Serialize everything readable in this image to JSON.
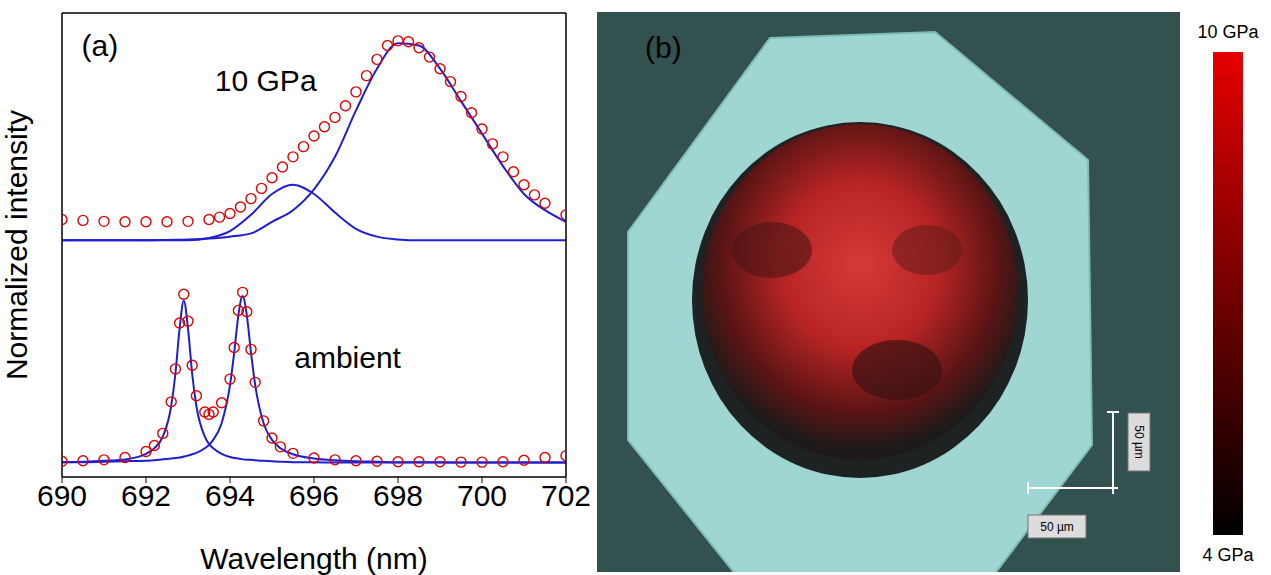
{
  "chart_data": {
    "type": "line",
    "x_label": "Wavelength (nm)",
    "y_label": "Normalized intensity",
    "xlim": [
      690,
      702
    ],
    "xticks": [
      690,
      692,
      694,
      696,
      698,
      700,
      702
    ],
    "ylim": [
      0,
      1
    ],
    "tick_labels": "x",
    "grid": false,
    "annotations": [
      {
        "text": "(a)",
        "x": 690.9,
        "y": 0.93
      },
      {
        "text": "10 GPa",
        "x": 694.85,
        "y": 0.854
      },
      {
        "text": "ambient",
        "x": 696.8,
        "y": 0.258
      }
    ],
    "series": [
      {
        "type": "line",
        "color": "#1f1fd0",
        "line_style": "solid",
        "x": [
          690,
          690.5,
          691,
          691.5,
          692,
          692.2,
          692.4,
          692.6,
          692.7,
          692.8,
          692.9,
          693.0,
          693.1,
          693.2,
          693.4,
          693.5,
          693.6,
          693.8,
          694.0,
          694.1,
          694.2,
          694.3,
          694.4,
          694.5,
          694.6,
          694.8,
          695.0,
          695.2,
          695.5,
          696,
          696.5,
          697,
          697.5,
          698,
          698.5,
          699,
          699.5,
          700,
          700.5,
          701,
          701.5,
          702
        ],
        "values": [
          0.032,
          0.033,
          0.035,
          0.038,
          0.05,
          0.062,
          0.087,
          0.153,
          0.222,
          0.32,
          0.38,
          0.32,
          0.222,
          0.153,
          0.087,
          0.071,
          0.062,
          0.05,
          0.043,
          0.041,
          0.04,
          0.038,
          0.037,
          0.037,
          0.036,
          0.035,
          0.034,
          0.033,
          0.032,
          0.032,
          0.031,
          0.031,
          0.031,
          0.031,
          0.031,
          0.031,
          0.031,
          0.031,
          0.031,
          0.031,
          0.031,
          0.031
        ]
      },
      {
        "type": "line",
        "color": "#1f1fd0",
        "line_style": "solid",
        "x": [
          690,
          690.5,
          691,
          691.5,
          692,
          692.2,
          692.4,
          692.6,
          692.7,
          692.8,
          692.9,
          693.0,
          693.1,
          693.2,
          693.4,
          693.5,
          693.6,
          693.8,
          694.0,
          694.1,
          694.2,
          694.3,
          694.4,
          694.5,
          694.6,
          694.8,
          695.0,
          695.2,
          695.5,
          696,
          696.5,
          697,
          697.5,
          698,
          698.5,
          699,
          699.5,
          700,
          700.5,
          701,
          701.5,
          702
        ],
        "values": [
          0.032,
          0.032,
          0.033,
          0.034,
          0.035,
          0.036,
          0.038,
          0.04,
          0.041,
          0.042,
          0.044,
          0.046,
          0.049,
          0.052,
          0.062,
          0.069,
          0.08,
          0.116,
          0.198,
          0.268,
          0.349,
          0.39,
          0.349,
          0.268,
          0.198,
          0.116,
          0.08,
          0.062,
          0.049,
          0.04,
          0.036,
          0.034,
          0.033,
          0.032,
          0.032,
          0.032,
          0.031,
          0.031,
          0.031,
          0.031,
          0.031,
          0.031
        ]
      },
      {
        "type": "scatter",
        "color": "#e00000",
        "marker": "circle",
        "x": [
          690,
          690.5,
          691,
          691.5,
          692,
          692.2,
          692.4,
          692.6,
          692.7,
          692.8,
          692.9,
          693.0,
          693.1,
          693.2,
          693.4,
          693.5,
          693.6,
          693.8,
          694.0,
          694.1,
          694.2,
          694.3,
          694.4,
          694.5,
          694.6,
          694.8,
          695.0,
          695.2,
          695.5,
          696,
          696.5,
          697,
          697.5,
          698,
          698.5,
          699,
          699.5,
          700,
          700.5,
          701,
          701.5,
          702
        ],
        "values": [
          0.034,
          0.035,
          0.037,
          0.042,
          0.055,
          0.068,
          0.094,
          0.162,
          0.233,
          0.332,
          0.394,
          0.336,
          0.241,
          0.175,
          0.14,
          0.135,
          0.14,
          0.16,
          0.211,
          0.279,
          0.359,
          0.398,
          0.356,
          0.275,
          0.204,
          0.121,
          0.084,
          0.065,
          0.051,
          0.041,
          0.037,
          0.035,
          0.034,
          0.033,
          0.033,
          0.033,
          0.032,
          0.032,
          0.033,
          0.036,
          0.042,
          0.046
        ]
      },
      {
        "type": "line",
        "color": "#1f1fd0",
        "line_style": "solid",
        "x": [
          690,
          690.5,
          691,
          691.5,
          692,
          692.5,
          693,
          693.5,
          694,
          694.5,
          695,
          695.5,
          696,
          696.5,
          697,
          697.5,
          698,
          698.5,
          699,
          699.5,
          700,
          700.5,
          701,
          701.5,
          702
        ],
        "values": [
          0.51,
          0.51,
          0.51,
          0.51,
          0.51,
          0.511,
          0.512,
          0.514,
          0.518,
          0.525,
          0.55,
          0.575,
          0.62,
          0.69,
          0.79,
          0.88,
          0.935,
          0.93,
          0.88,
          0.81,
          0.74,
          0.67,
          0.61,
          0.575,
          0.55
        ]
      },
      {
        "type": "line",
        "color": "#1f1fd0",
        "line_style": "solid",
        "x": [
          690,
          690.5,
          691,
          691.5,
          692,
          692.5,
          693,
          693.5,
          694,
          694.5,
          695,
          695.5,
          696,
          696.5,
          697,
          697.5,
          698,
          698.5,
          699,
          699.5,
          700,
          700.5,
          701,
          701.5,
          702
        ],
        "values": [
          0.51,
          0.51,
          0.51,
          0.51,
          0.51,
          0.51,
          0.51,
          0.515,
          0.53,
          0.565,
          0.61,
          0.63,
          0.61,
          0.57,
          0.535,
          0.518,
          0.512,
          0.51,
          0.51,
          0.51,
          0.51,
          0.51,
          0.51,
          0.51,
          0.51
        ]
      },
      {
        "type": "scatter",
        "color": "#e00000",
        "marker": "circle",
        "x": [
          690,
          690.5,
          691,
          691.5,
          692,
          692.5,
          693,
          693.5,
          693.75,
          694,
          694.25,
          694.5,
          694.75,
          695,
          695.25,
          695.5,
          695.75,
          696,
          696.25,
          696.5,
          696.75,
          697,
          697.25,
          697.5,
          697.75,
          698,
          698.25,
          698.5,
          698.75,
          699,
          699.25,
          699.5,
          699.75,
          700,
          700.25,
          700.5,
          700.75,
          701,
          701.25,
          701.5,
          702
        ],
        "values": [
          0.555,
          0.553,
          0.551,
          0.55,
          0.55,
          0.55,
          0.551,
          0.555,
          0.56,
          0.568,
          0.582,
          0.6,
          0.622,
          0.645,
          0.668,
          0.69,
          0.712,
          0.735,
          0.755,
          0.775,
          0.8,
          0.83,
          0.865,
          0.9,
          0.93,
          0.94,
          0.938,
          0.925,
          0.905,
          0.88,
          0.852,
          0.82,
          0.785,
          0.75,
          0.718,
          0.69,
          0.658,
          0.63,
          0.608,
          0.59,
          0.565
        ]
      }
    ]
  },
  "image_panel": {
    "label": "(b)",
    "colorbar": {
      "range": [
        4,
        10
      ],
      "colors": [
        "#000000",
        "#e60000"
      ],
      "ticks": [
        {
          "value": 10,
          "label": "10 GPa"
        },
        {
          "value": 4,
          "label": "4 GPa"
        }
      ]
    },
    "scale_bars": [
      {
        "label": "50 µm",
        "direction": "vertical"
      },
      {
        "label": "50 µm",
        "direction": "horizontal"
      }
    ]
  }
}
